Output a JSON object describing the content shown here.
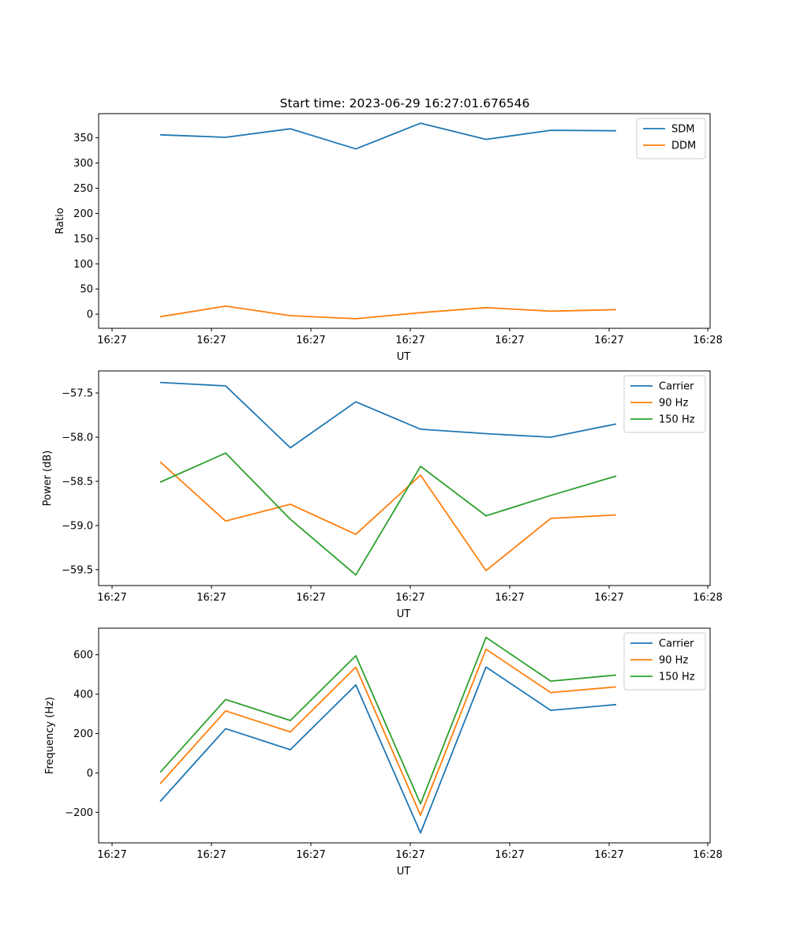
{
  "colors": {
    "blue": "#1f77b4",
    "orange": "#ff7f0e",
    "green": "#2ca02c"
  },
  "chart_data": [
    {
      "type": "line",
      "title": "Start time: 2023-06-29 16:27:01.676546",
      "xlabel": "UT",
      "ylabel": "Ratio",
      "x_tick_labels": [
        "16:27",
        "16:27",
        "16:27",
        "16:27",
        "16:27",
        "16:27",
        "16:28"
      ],
      "y_ticks": [
        0,
        50,
        100,
        150,
        200,
        250,
        300,
        350
      ],
      "ylim": [
        -28,
        398
      ],
      "legend_location": "upper right",
      "series": [
        {
          "name": "SDM",
          "color": "#1f77b4",
          "values": [
            356,
            351,
            368,
            328,
            379,
            347,
            365,
            364
          ]
        },
        {
          "name": "DDM",
          "color": "#ff7f0e",
          "values": [
            -5,
            16,
            -3,
            -9,
            3,
            13,
            6,
            9
          ]
        }
      ]
    },
    {
      "type": "line",
      "title": "",
      "xlabel": "UT",
      "ylabel": "Power (dB)",
      "x_tick_labels": [
        "16:27",
        "16:27",
        "16:27",
        "16:27",
        "16:27",
        "16:27",
        "16:28"
      ],
      "y_ticks": [
        -57.5,
        -58.0,
        -58.5,
        -59.0,
        -59.5
      ],
      "ylim": [
        -59.68,
        -57.25
      ],
      "legend_location": "upper right",
      "series": [
        {
          "name": "Carrier",
          "color": "#1f77b4",
          "values": [
            -57.38,
            -57.42,
            -58.12,
            -57.6,
            -57.91,
            -57.96,
            -58.0,
            -57.85
          ]
        },
        {
          "name": "90 Hz",
          "color": "#ff7f0e",
          "values": [
            -58.28,
            -58.95,
            -58.76,
            -59.1,
            -58.43,
            -59.51,
            -58.92,
            -58.88
          ]
        },
        {
          "name": "150 Hz",
          "color": "#2ca02c",
          "values": [
            -58.51,
            -58.18,
            -58.93,
            -59.56,
            -58.33,
            -58.89,
            -58.66,
            -58.44
          ]
        }
      ]
    },
    {
      "type": "line",
      "title": "",
      "xlabel": "UT",
      "ylabel": "Frequency (Hz)",
      "x_tick_labels": [
        "16:27",
        "16:27",
        "16:27",
        "16:27",
        "16:27",
        "16:27",
        "16:28"
      ],
      "y_ticks": [
        -200,
        0,
        200,
        400,
        600
      ],
      "ylim": [
        -355,
        735
      ],
      "legend_location": "upper right",
      "series": [
        {
          "name": "Carrier",
          "color": "#1f77b4",
          "values": [
            -145,
            225,
            118,
            447,
            -305,
            538,
            318,
            347
          ]
        },
        {
          "name": "90 Hz",
          "color": "#ff7f0e",
          "values": [
            -55,
            315,
            208,
            537,
            -215,
            628,
            408,
            437
          ]
        },
        {
          "name": "150 Hz",
          "color": "#2ca02c",
          "values": [
            3,
            373,
            266,
            595,
            -157,
            688,
            466,
            497
          ]
        }
      ]
    }
  ]
}
